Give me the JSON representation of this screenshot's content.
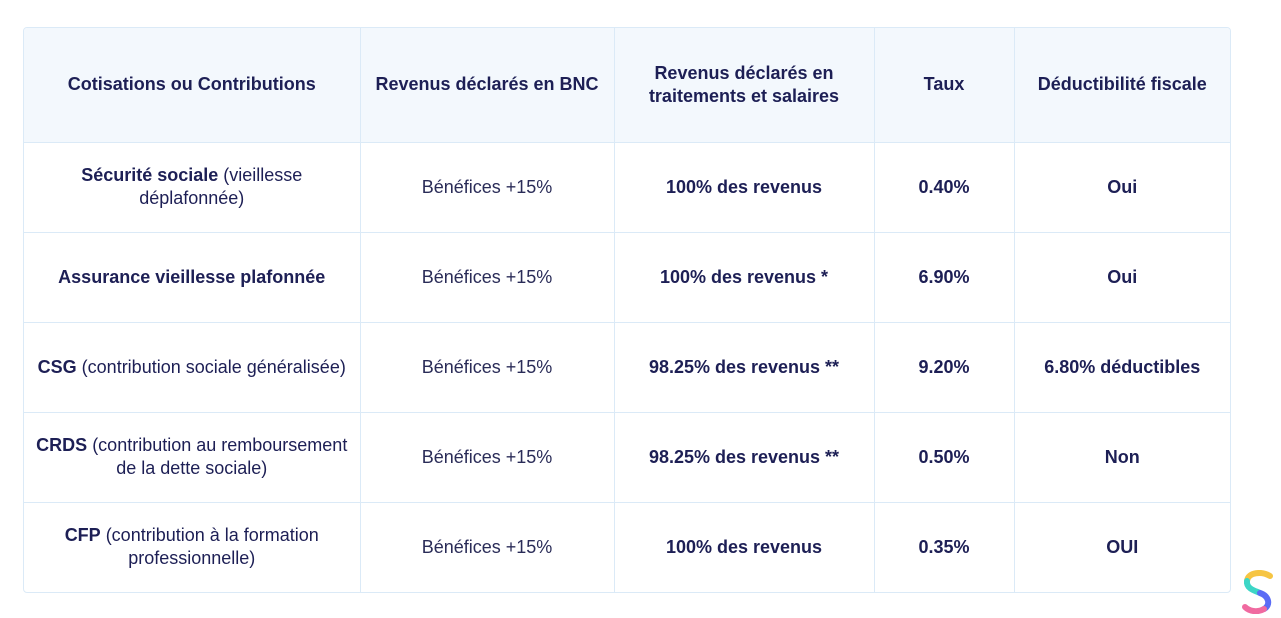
{
  "table": {
    "headers": [
      "Cotisations ou Contributions",
      "Revenus déclarés en BNC",
      "Revenus déclarés en traitements et salaires",
      "Taux",
      "Déductibilité fiscale"
    ],
    "rows": [
      {
        "name_bold": "Sécurité sociale",
        "name_rest": " (vieillesse déplafonnée)",
        "bnc": "Bénéfices +15%",
        "ts": "100% des revenus",
        "rate": "0.40%",
        "deductible": "Oui"
      },
      {
        "name_bold": "Assurance vieillesse plafonnée",
        "name_rest": "",
        "bnc": "Bénéfices +15%",
        "ts": "100% des revenus *",
        "rate": "6.90%",
        "deductible": "Oui"
      },
      {
        "name_bold": "CSG",
        "name_rest": " (contribution sociale généralisée)",
        "bnc": "Bénéfices +15%",
        "ts": "98.25% des revenus **",
        "rate": "9.20%",
        "deductible": "6.80% déductibles"
      },
      {
        "name_bold": "CRDS",
        "name_rest": " (contribution au remboursement de la dette sociale)",
        "bnc": "Bénéfices +15%",
        "ts": "98.25% des revenus **",
        "rate": "0.50%",
        "deductible": "Non"
      },
      {
        "name_bold": "CFP",
        "name_rest": " (contribution à la formation professionnelle)",
        "bnc": "Bénéfices +15%",
        "ts": "100% des revenus",
        "rate": "0.35%",
        "deductible": "OUI"
      }
    ]
  },
  "logo": {
    "icon": "brand-s-logo-icon",
    "colors": [
      "#f6c543",
      "#3dd6c6",
      "#5b6cf5",
      "#f06aa0"
    ]
  },
  "colors": {
    "text": "#1d1f55",
    "header_bg": "#f3f8fd",
    "border": "#dbeaf7"
  }
}
